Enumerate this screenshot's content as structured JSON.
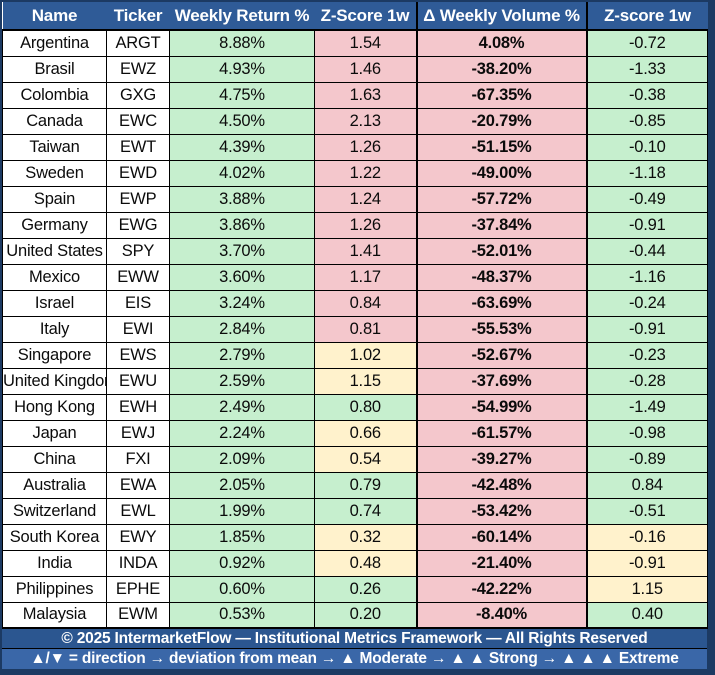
{
  "colors": {
    "frame": "#1C3A63",
    "header_bg": "#2F5B97",
    "copyright_bg": "#2B5690",
    "legend_bg": "#3A67A8",
    "green": "#C6EFCE",
    "yellow": "#FFF2CC",
    "pink": "#F4C7CC",
    "cell_white": "#FFFFFF",
    "grid": "#000000"
  },
  "table": {
    "columns": [
      {
        "label": "Name"
      },
      {
        "label": "Ticker"
      },
      {
        "label": "Weekly Return %"
      },
      {
        "label": "Z-Score 1w"
      },
      {
        "label": "Δ Weekly Volume %"
      },
      {
        "label": "Z-score 1w"
      }
    ],
    "rows": [
      {
        "name": "Argentina",
        "ticker": "ARGT",
        "weekly_return": "8.88%",
        "return_zscore": "1.54",
        "return_zscore_color": "pink",
        "volume_delta": "4.08%",
        "volume_zscore": "-0.72",
        "volume_zscore_color": "green"
      },
      {
        "name": "Brasil",
        "ticker": "EWZ",
        "weekly_return": "4.93%",
        "return_zscore": "1.46",
        "return_zscore_color": "pink",
        "volume_delta": "-38.20%",
        "volume_zscore": "-1.33",
        "volume_zscore_color": "green"
      },
      {
        "name": "Colombia",
        "ticker": "GXG",
        "weekly_return": "4.75%",
        "return_zscore": "1.63",
        "return_zscore_color": "pink",
        "volume_delta": "-67.35%",
        "volume_zscore": "-0.38",
        "volume_zscore_color": "green"
      },
      {
        "name": "Canada",
        "ticker": "EWC",
        "weekly_return": "4.50%",
        "return_zscore": "2.13",
        "return_zscore_color": "pink",
        "volume_delta": "-20.79%",
        "volume_zscore": "-0.85",
        "volume_zscore_color": "green"
      },
      {
        "name": "Taiwan",
        "ticker": "EWT",
        "weekly_return": "4.39%",
        "return_zscore": "1.26",
        "return_zscore_color": "pink",
        "volume_delta": "-51.15%",
        "volume_zscore": "-0.10",
        "volume_zscore_color": "green"
      },
      {
        "name": "Sweden",
        "ticker": "EWD",
        "weekly_return": "4.02%",
        "return_zscore": "1.22",
        "return_zscore_color": "pink",
        "volume_delta": "-49.00%",
        "volume_zscore": "-1.18",
        "volume_zscore_color": "green"
      },
      {
        "name": "Spain",
        "ticker": "EWP",
        "weekly_return": "3.88%",
        "return_zscore": "1.24",
        "return_zscore_color": "pink",
        "volume_delta": "-57.72%",
        "volume_zscore": "-0.49",
        "volume_zscore_color": "green"
      },
      {
        "name": "Germany",
        "ticker": "EWG",
        "weekly_return": "3.86%",
        "return_zscore": "1.26",
        "return_zscore_color": "pink",
        "volume_delta": "-37.84%",
        "volume_zscore": "-0.91",
        "volume_zscore_color": "green"
      },
      {
        "name": "United States",
        "ticker": "SPY",
        "weekly_return": "3.70%",
        "return_zscore": "1.41",
        "return_zscore_color": "pink",
        "volume_delta": "-52.01%",
        "volume_zscore": "-0.44",
        "volume_zscore_color": "green"
      },
      {
        "name": "Mexico",
        "ticker": "EWW",
        "weekly_return": "3.60%",
        "return_zscore": "1.17",
        "return_zscore_color": "pink",
        "volume_delta": "-48.37%",
        "volume_zscore": "-1.16",
        "volume_zscore_color": "green"
      },
      {
        "name": "Israel",
        "ticker": "EIS",
        "weekly_return": "3.24%",
        "return_zscore": "0.84",
        "return_zscore_color": "pink",
        "volume_delta": "-63.69%",
        "volume_zscore": "-0.24",
        "volume_zscore_color": "green"
      },
      {
        "name": "Italy",
        "ticker": "EWI",
        "weekly_return": "2.84%",
        "return_zscore": "0.81",
        "return_zscore_color": "pink",
        "volume_delta": "-55.53%",
        "volume_zscore": "-0.91",
        "volume_zscore_color": "green"
      },
      {
        "name": "Singapore",
        "ticker": "EWS",
        "weekly_return": "2.79%",
        "return_zscore": "1.02",
        "return_zscore_color": "yellow",
        "volume_delta": "-52.67%",
        "volume_zscore": "-0.23",
        "volume_zscore_color": "green"
      },
      {
        "name": "United Kingdom",
        "ticker": "EWU",
        "weekly_return": "2.59%",
        "return_zscore": "1.15",
        "return_zscore_color": "yellow",
        "volume_delta": "-37.69%",
        "volume_zscore": "-0.28",
        "volume_zscore_color": "green"
      },
      {
        "name": "Hong Kong",
        "ticker": "EWH",
        "weekly_return": "2.49%",
        "return_zscore": "0.80",
        "return_zscore_color": "green",
        "volume_delta": "-54.99%",
        "volume_zscore": "-1.49",
        "volume_zscore_color": "green"
      },
      {
        "name": "Japan",
        "ticker": "EWJ",
        "weekly_return": "2.24%",
        "return_zscore": "0.66",
        "return_zscore_color": "yellow",
        "volume_delta": "-61.57%",
        "volume_zscore": "-0.98",
        "volume_zscore_color": "green"
      },
      {
        "name": "China",
        "ticker": "FXI",
        "weekly_return": "2.09%",
        "return_zscore": "0.54",
        "return_zscore_color": "yellow",
        "volume_delta": "-39.27%",
        "volume_zscore": "-0.89",
        "volume_zscore_color": "green"
      },
      {
        "name": "Australia",
        "ticker": "EWA",
        "weekly_return": "2.05%",
        "return_zscore": "0.79",
        "return_zscore_color": "green",
        "volume_delta": "-42.48%",
        "volume_zscore": "0.84",
        "volume_zscore_color": "green"
      },
      {
        "name": "Switzerland",
        "ticker": "EWL",
        "weekly_return": "1.99%",
        "return_zscore": "0.74",
        "return_zscore_color": "green",
        "volume_delta": "-53.42%",
        "volume_zscore": "-0.51",
        "volume_zscore_color": "green"
      },
      {
        "name": "South Korea",
        "ticker": "EWY",
        "weekly_return": "1.85%",
        "return_zscore": "0.32",
        "return_zscore_color": "yellow",
        "volume_delta": "-60.14%",
        "volume_zscore": "-0.16",
        "volume_zscore_color": "yellow"
      },
      {
        "name": "India",
        "ticker": "INDA",
        "weekly_return": "0.92%",
        "return_zscore": "0.48",
        "return_zscore_color": "yellow",
        "volume_delta": "-21.40%",
        "volume_zscore": "-0.91",
        "volume_zscore_color": "yellow"
      },
      {
        "name": "Philippines",
        "ticker": "EPHE",
        "weekly_return": "0.60%",
        "return_zscore": "0.26",
        "return_zscore_color": "green",
        "volume_delta": "-42.22%",
        "volume_zscore": "1.15",
        "volume_zscore_color": "yellow"
      },
      {
        "name": "Malaysia",
        "ticker": "EWM",
        "weekly_return": "0.53%",
        "return_zscore": "0.20",
        "return_zscore_color": "green",
        "volume_delta": "-8.40%",
        "volume_zscore": "0.40",
        "volume_zscore_color": "green"
      }
    ]
  },
  "footer": {
    "copyright": "© 2025 IntermarketFlow — Institutional Metrics Framework — All Rights Reserved",
    "legend": "▲/▼ = direction → deviation from mean → ▲ Moderate → ▲ ▲ Strong → ▲ ▲ ▲ Extreme"
  }
}
